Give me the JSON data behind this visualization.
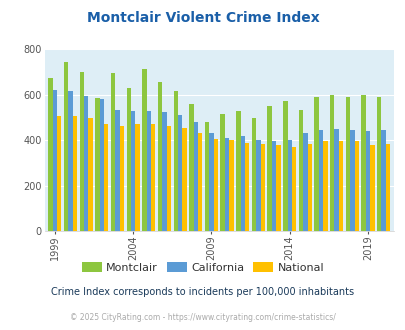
{
  "title": "Montclair Violent Crime Index",
  "subtitle": "Crime Index corresponds to incidents per 100,000 inhabitants",
  "copyright": "© 2025 CityRating.com - https://www.cityrating.com/crime-statistics/",
  "years": [
    1999,
    2000,
    2001,
    2002,
    2003,
    2004,
    2005,
    2006,
    2007,
    2008,
    2009,
    2010,
    2011,
    2012,
    2013,
    2014,
    2015,
    2016,
    2017,
    2018,
    2019,
    2020
  ],
  "montclair": [
    675,
    745,
    700,
    585,
    695,
    630,
    715,
    655,
    615,
    560,
    480,
    515,
    530,
    500,
    550,
    575,
    535,
    590,
    600,
    590,
    600,
    590
  ],
  "california": [
    620,
    615,
    595,
    580,
    535,
    530,
    530,
    525,
    510,
    480,
    430,
    410,
    420,
    400,
    395,
    400,
    430,
    445,
    450,
    445,
    440,
    445
  ],
  "national": [
    505,
    505,
    500,
    470,
    465,
    470,
    470,
    465,
    455,
    430,
    405,
    400,
    390,
    385,
    380,
    370,
    385,
    395,
    395,
    395,
    380,
    385
  ],
  "bar_colors": {
    "montclair": "#8dc63f",
    "california": "#5b9bd5",
    "national": "#ffc000"
  },
  "ylim": [
    0,
    800
  ],
  "yticks": [
    0,
    200,
    400,
    600,
    800
  ],
  "plot_bg": "#deeef6",
  "title_color": "#1a5fa8",
  "subtitle_color": "#1a3a5a",
  "copyright_color": "#aaaaaa",
  "xtick_labels": [
    1999,
    2004,
    2009,
    2014,
    2019
  ],
  "legend_labels": [
    "Montclair",
    "California",
    "National"
  ]
}
